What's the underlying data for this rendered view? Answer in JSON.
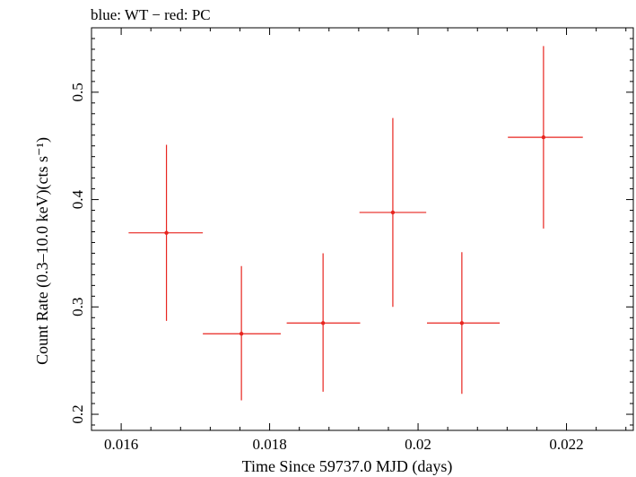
{
  "chart_data": {
    "type": "scatter",
    "title": "blue: WT − red: PC",
    "xlabel": "Time Since 59737.0 MJD (days)",
    "ylabel": "Count Rate (0.3–10.0 keV)(cts s⁻¹)",
    "xlim": [
      0.0156,
      0.0229
    ],
    "ylim": [
      0.185,
      0.56
    ],
    "x_ticks": [
      0.016,
      0.018,
      0.02,
      0.022
    ],
    "x_tick_labels": [
      "0.016",
      "0.018",
      "0.02",
      "0.022"
    ],
    "y_ticks": [
      0.2,
      0.3,
      0.4,
      0.5
    ],
    "y_tick_labels": [
      "0.2",
      "0.3",
      "0.4",
      "0.5"
    ],
    "grid": false,
    "series": [
      {
        "color": "#e8251f",
        "points": [
          {
            "x": 0.01661,
            "y": 0.369,
            "xerr": [
              0.00051,
              0.00049
            ],
            "yerr": [
              0.082,
              0.082
            ]
          },
          {
            "x": 0.01762,
            "y": 0.275,
            "xerr": [
              0.00052,
              0.00053
            ],
            "yerr": [
              0.062,
              0.063
            ]
          },
          {
            "x": 0.01872,
            "y": 0.285,
            "xerr": [
              0.00049,
              0.0005
            ],
            "yerr": [
              0.064,
              0.065
            ]
          },
          {
            "x": 0.01966,
            "y": 0.388,
            "xerr": [
              0.00045,
              0.00045
            ],
            "yerr": [
              0.088,
              0.088
            ]
          },
          {
            "x": 0.02059,
            "y": 0.285,
            "xerr": [
              0.00047,
              0.00051
            ],
            "yerr": [
              0.066,
              0.066
            ]
          },
          {
            "x": 0.02169,
            "y": 0.458,
            "xerr": [
              0.00048,
              0.00053
            ],
            "yerr": [
              0.085,
              0.085
            ]
          }
        ]
      }
    ]
  }
}
